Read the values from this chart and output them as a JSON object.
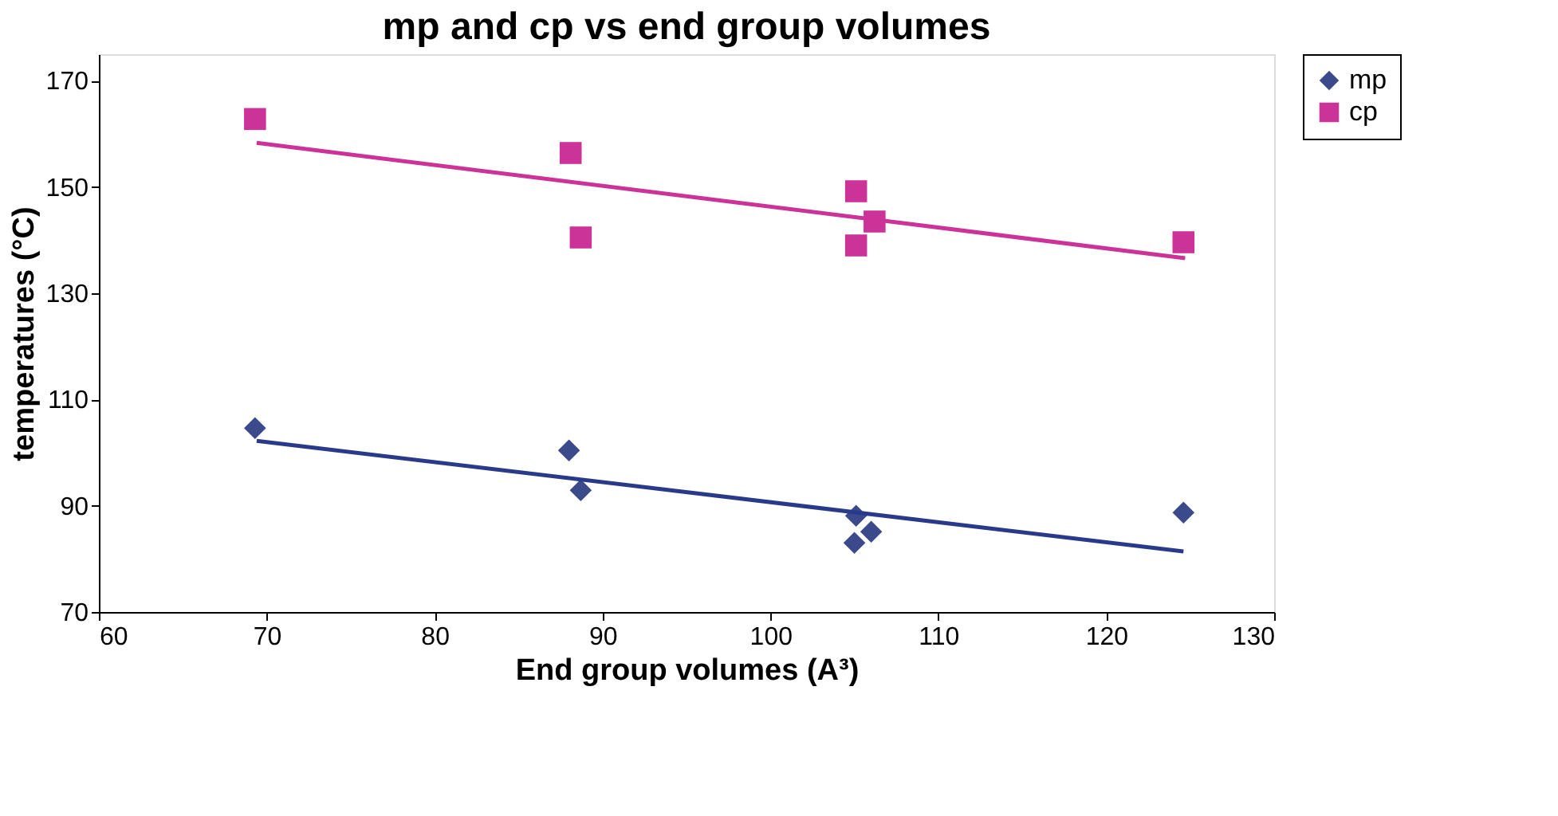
{
  "chart_data": {
    "type": "scatter",
    "title": "mp and cp vs end group volumes",
    "xlabel": "End group volumes (A³)",
    "ylabel": "temperatures (°C)",
    "xlim": [
      60,
      130
    ],
    "xticks": [
      60,
      70,
      80,
      90,
      100,
      110,
      120,
      130
    ],
    "ylim": [
      70,
      175
    ],
    "yticks": [
      70,
      90,
      110,
      130,
      150,
      170
    ],
    "grid": false,
    "legend": "right",
    "series": [
      {
        "name": "mp",
        "color": "#3b4a8a",
        "marker": "diamond",
        "x": [
          69.3,
          88.0,
          88.7,
          105.1,
          105.0,
          106.0,
          124.6
        ],
        "values": [
          104.6,
          100.4,
          92.9,
          88.1,
          83.0,
          85.1,
          88.7
        ]
      },
      {
        "name": "cp",
        "color": "#cc3399",
        "marker": "square",
        "x": [
          69.3,
          88.1,
          88.7,
          105.1,
          105.1,
          106.2,
          124.6
        ],
        "values": [
          162.8,
          156.4,
          140.5,
          149.2,
          139.0,
          143.5,
          139.6
        ]
      },
      {
        "type": "line",
        "color": "#2a3a8a",
        "x": [
          69.4,
          124.6
        ],
        "values": [
          102.2,
          81.4
        ]
      },
      {
        "type": "line",
        "color": "#cc3399",
        "x": [
          69.4,
          124.7
        ],
        "values": [
          158.3,
          136.6
        ]
      }
    ]
  }
}
